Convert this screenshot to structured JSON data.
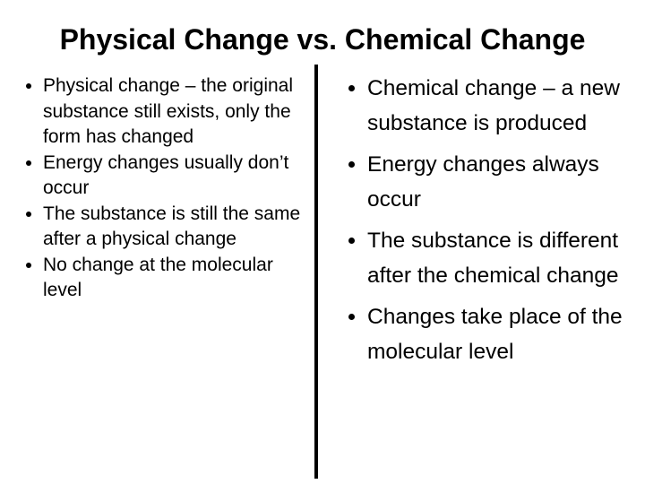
{
  "title": "Physical Change vs. Chemical Change",
  "columns": [
    {
      "items": [
        "Physical change – the original substance still exists, only the form has changed",
        "Energy changes usually don’t occur",
        "The substance is still the same after a physical change",
        "No change at the molecular level"
      ]
    },
    {
      "items": [
        "Chemical change – a new substance is produced",
        "Energy changes always occur",
        "The substance is different after the chemical change",
        "Changes take place of the molecular level"
      ]
    }
  ]
}
